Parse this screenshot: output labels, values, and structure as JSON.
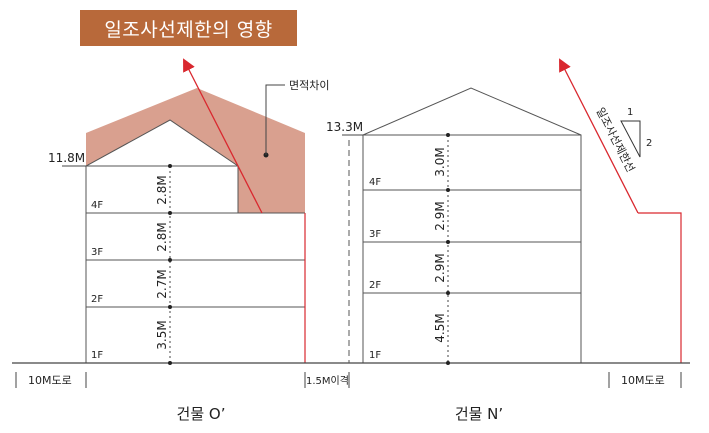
{
  "title": "일조사선제한의 영향",
  "annotations": {
    "area_difference": "면적차이",
    "sunlight_line": "일조사선제한선",
    "slope_rise": "1",
    "slope_run": "2"
  },
  "building_o": {
    "name": "건물 O’",
    "height_label": "11.8M",
    "floors": [
      {
        "label": "1F",
        "height": "3.5M"
      },
      {
        "label": "2F",
        "height": "2.7M"
      },
      {
        "label": "3F",
        "height": "2.8M"
      },
      {
        "label": "4F",
        "height": "2.8M"
      }
    ]
  },
  "building_n": {
    "name": "건물 N’",
    "height_label": "13.3M",
    "floors": [
      {
        "label": "1F",
        "height": "4.5M"
      },
      {
        "label": "2F",
        "height": "2.9M"
      },
      {
        "label": "3F",
        "height": "2.9M"
      },
      {
        "label": "4F",
        "height": "3.0M"
      }
    ]
  },
  "dimensions": {
    "road_left": "10M도로",
    "setback": "1.5M이격",
    "road_right": "10M도로"
  },
  "colors": {
    "title_bg": "#b8693a",
    "shade_fill": "#d9a08f",
    "sunlight_line": "#d9282f",
    "outline": "#555555"
  }
}
